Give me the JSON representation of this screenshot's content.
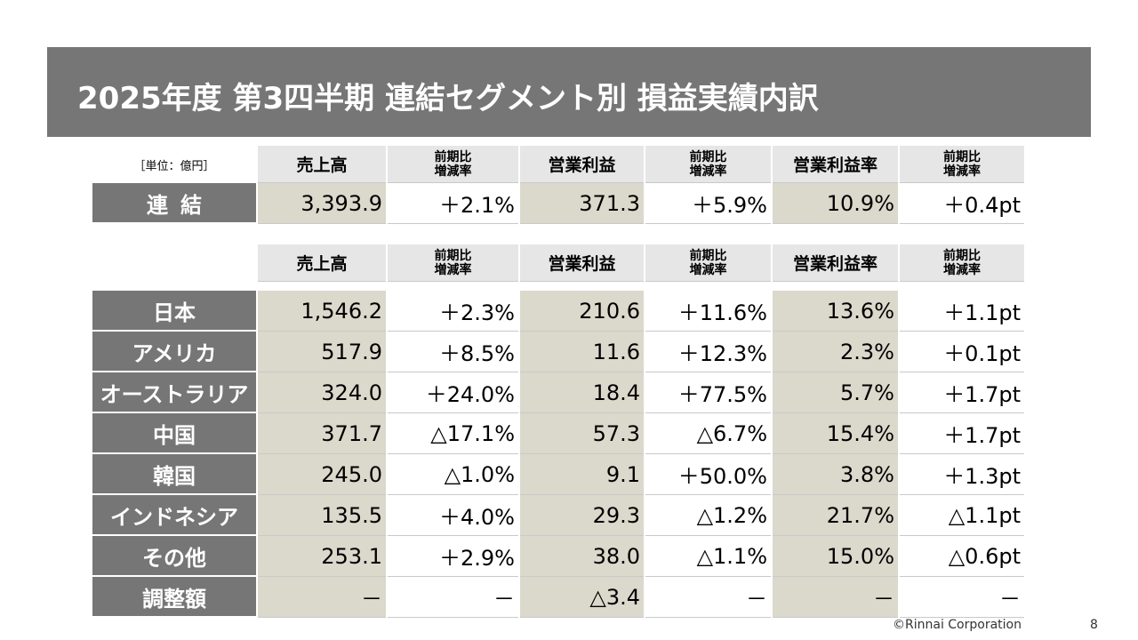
{
  "title": "2025年度 第3四半期 連結セグメント別 損益実績内訳",
  "unit_label": "［単位：億円］",
  "headers": {
    "sales": "売上高",
    "yoy_line1": "前期比",
    "yoy_line2": "増減率",
    "op_profit": "営業利益",
    "op_margin": "営業利益率"
  },
  "consolidated": {
    "label": "連結",
    "values": [
      "3,393.9",
      "＋2.1%",
      "371.3",
      "＋5.9%",
      "10.9%",
      "＋0.4pt"
    ]
  },
  "segments": [
    {
      "label": "日本",
      "values": [
        "1,546.2",
        "＋2.3%",
        "210.6",
        "＋11.6%",
        "13.6%",
        "＋1.1pt"
      ]
    },
    {
      "label": "アメリカ",
      "values": [
        "517.9",
        "＋8.5%",
        "11.6",
        "＋12.3%",
        "2.3%",
        "＋0.1pt"
      ]
    },
    {
      "label": "オーストラリア",
      "values": [
        "324.0",
        "＋24.0%",
        "18.4",
        "＋77.5%",
        "5.7%",
        "＋1.7pt"
      ]
    },
    {
      "label": "中国",
      "values": [
        "371.7",
        "△17.1%",
        "57.3",
        "△6.7%",
        "15.4%",
        "＋1.7pt"
      ]
    },
    {
      "label": "韓国",
      "values": [
        "245.0",
        "△1.0%",
        "9.1",
        "＋50.0%",
        "3.8%",
        "＋1.3pt"
      ]
    },
    {
      "label": "インドネシア",
      "values": [
        "135.5",
        "＋4.0%",
        "29.3",
        "△1.2%",
        "21.7%",
        "△1.1pt"
      ]
    },
    {
      "label": "その他",
      "values": [
        "253.1",
        "＋2.9%",
        "38.0",
        "△1.1%",
        "15.0%",
        "△0.6pt"
      ]
    },
    {
      "label": "調整額",
      "values": [
        "－",
        "－",
        "△3.4",
        "－",
        "－",
        "－"
      ]
    }
  ],
  "footer": {
    "copyright": "©Rinnai Corporation",
    "page_number": "8"
  }
}
